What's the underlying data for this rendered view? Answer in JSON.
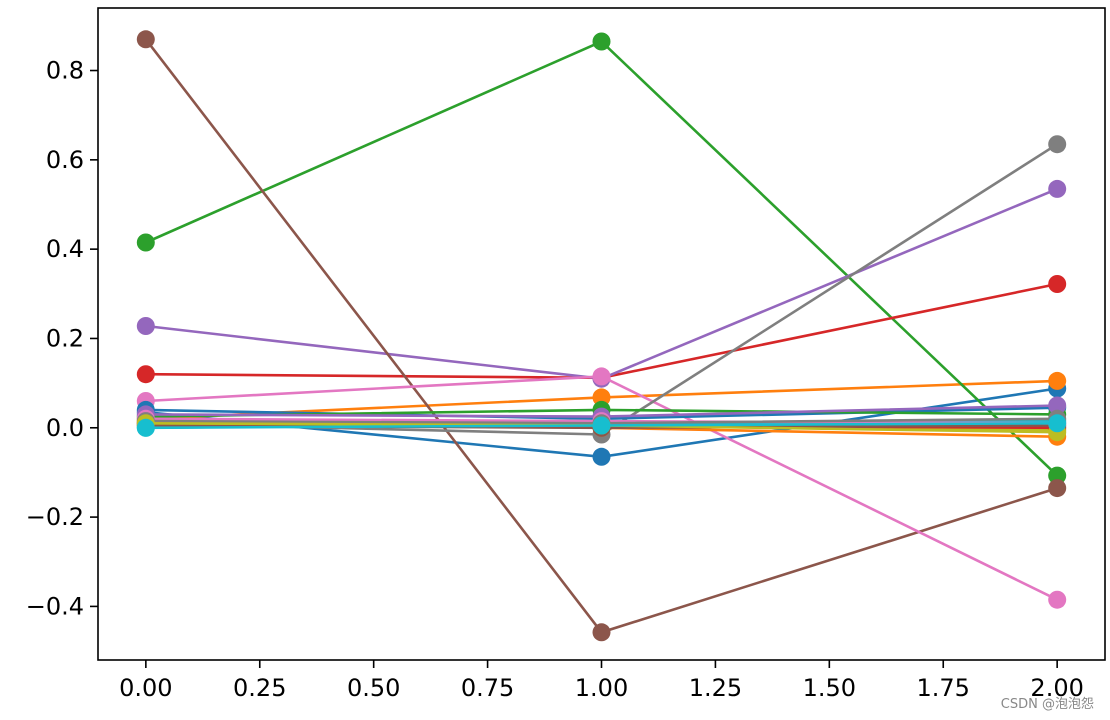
{
  "chart_data": {
    "type": "line",
    "title": "",
    "xlabel": "",
    "ylabel": "",
    "xlim": [
      -0.105,
      2.105
    ],
    "ylim": [
      -0.52,
      0.94
    ],
    "x_ticks": [
      0.0,
      0.25,
      0.5,
      0.75,
      1.0,
      1.25,
      1.5,
      1.75,
      2.0
    ],
    "x_tick_labels": [
      "0.00",
      "0.25",
      "0.50",
      "0.75",
      "1.00",
      "1.25",
      "1.50",
      "1.75",
      "2.00"
    ],
    "y_ticks": [
      -0.4,
      -0.2,
      0.0,
      0.2,
      0.4,
      0.6,
      0.8
    ],
    "y_tick_labels": [
      "−0.4",
      "−0.2",
      "0.0",
      "0.2",
      "0.4",
      "0.6",
      "0.8"
    ],
    "grid": false,
    "legend": "none",
    "x": [
      0,
      1,
      2
    ],
    "series": [
      {
        "color": "#1f77b4",
        "values": [
          0.035,
          -0.065,
          0.088
        ]
      },
      {
        "color": "#ff7f0e",
        "values": [
          0.02,
          0.068,
          0.105
        ]
      },
      {
        "color": "#2ca02c",
        "values": [
          0.415,
          0.865,
          -0.107
        ]
      },
      {
        "color": "#d62728",
        "values": [
          0.12,
          0.112,
          0.322
        ]
      },
      {
        "color": "#9467bd",
        "values": [
          0.228,
          0.11,
          0.535
        ]
      },
      {
        "color": "#8c564b",
        "values": [
          0.87,
          -0.458,
          -0.135
        ]
      },
      {
        "color": "#e377c2",
        "values": [
          0.06,
          0.115,
          -0.385
        ]
      },
      {
        "color": "#7f7f7f",
        "values": [
          0.01,
          -0.015,
          0.635
        ]
      },
      {
        "color": "#bcbd22",
        "values": [
          0.005,
          0.005,
          -0.005
        ]
      },
      {
        "color": "#17becf",
        "values": [
          0.0,
          0.01,
          0.015
        ]
      },
      {
        "color": "#1f77b4",
        "values": [
          0.04,
          0.02,
          0.045
        ]
      },
      {
        "color": "#ff7f0e",
        "values": [
          0.015,
          0.0,
          -0.02
        ]
      },
      {
        "color": "#2ca02c",
        "values": [
          0.025,
          0.04,
          0.03
        ]
      },
      {
        "color": "#d62728",
        "values": [
          0.01,
          0.005,
          0.0
        ]
      },
      {
        "color": "#9467bd",
        "values": [
          0.03,
          0.025,
          0.05
        ]
      },
      {
        "color": "#8c564b",
        "values": [
          0.005,
          0.0,
          0.005
        ]
      },
      {
        "color": "#e377c2",
        "values": [
          0.02,
          0.015,
          0.01
        ]
      },
      {
        "color": "#7f7f7f",
        "values": [
          0.015,
          0.01,
          0.02
        ]
      },
      {
        "color": "#bcbd22",
        "values": [
          0.01,
          0.005,
          -0.01
        ]
      },
      {
        "color": "#17becf",
        "values": [
          0.0,
          0.005,
          0.01
        ]
      }
    ]
  },
  "watermark": "CSDN @泡泡怨"
}
